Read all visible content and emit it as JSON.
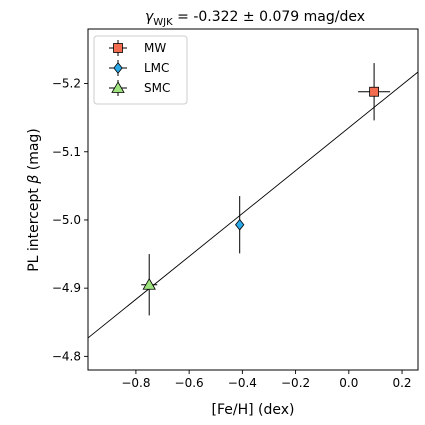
{
  "chart_data": {
    "type": "scatter",
    "title_parts": {
      "symbol": "γ",
      "subscript": "WJK",
      "rest": " = -0.322 ± 0.079 mag/dex"
    },
    "xlabel": "[Fe/H] (dex)",
    "ylabel_parts": {
      "text": "PL intercept ",
      "symbol": "β",
      "unit": " (mag)"
    },
    "xlim": [
      -0.98,
      0.26
    ],
    "ylim": [
      -4.78,
      -5.28
    ],
    "y_inverted": true,
    "xticks": [
      -0.8,
      -0.6,
      -0.4,
      -0.2,
      0.0,
      0.2
    ],
    "xtick_labels": [
      "−0.8",
      "−0.6",
      "−0.4",
      "−0.2",
      "0.0",
      "0.2"
    ],
    "yticks": [
      -5.2,
      -5.1,
      -5.0,
      -4.9,
      -4.8
    ],
    "ytick_labels": [
      "−5.2",
      "−5.1",
      "−5.0",
      "−4.9",
      "−4.8"
    ],
    "grid": false,
    "legend_position": "top-left",
    "series": [
      {
        "name": "MW",
        "marker": "square",
        "color": "#f26d4f",
        "x": 0.095,
        "y": -5.188,
        "xerr": 0.06,
        "yerr": 0.042
      },
      {
        "name": "LMC",
        "marker": "diamond",
        "color": "#2ba8e8",
        "x": -0.41,
        "y": -4.993,
        "xerr": 0.0,
        "yerr": 0.042
      },
      {
        "name": "SMC",
        "marker": "triangle",
        "color": "#9ee37d",
        "x": -0.75,
        "y": -4.905,
        "xerr": 0.03,
        "yerr": 0.045
      }
    ],
    "fit_line": {
      "slope": -0.322,
      "x": [
        -0.98,
        0.26
      ],
      "y": [
        -4.827,
        -5.217
      ]
    }
  }
}
